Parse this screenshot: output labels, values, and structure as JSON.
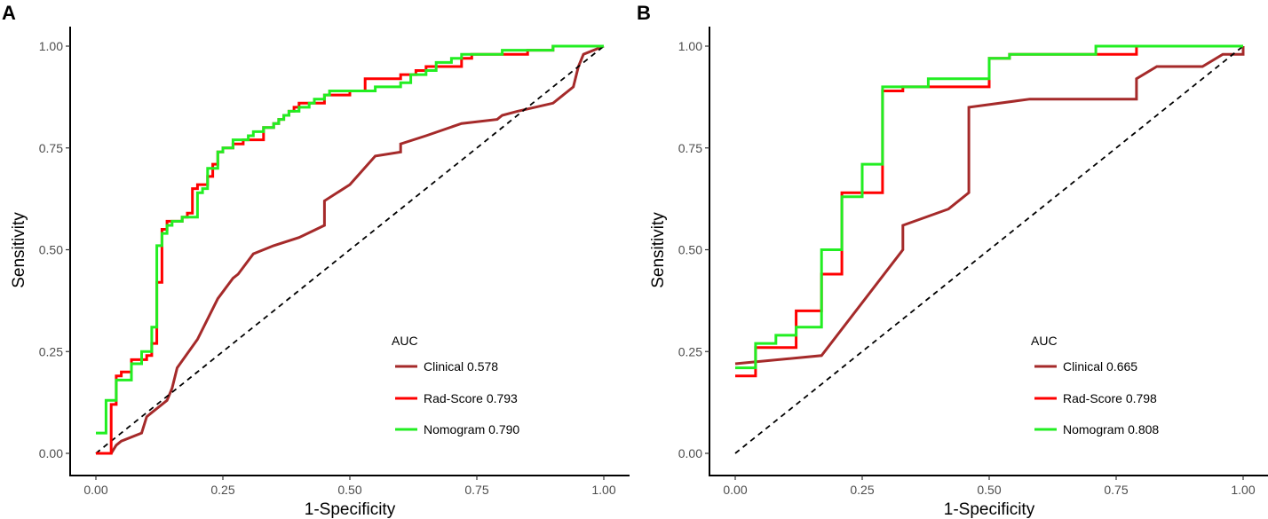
{
  "chart_data": [
    {
      "type": "line",
      "panel_label": "A",
      "xlabel": "1-Specificity",
      "ylabel": "Sensitivity",
      "xlim": [
        0,
        1
      ],
      "ylim": [
        0,
        1
      ],
      "xticks": [
        "0.00",
        "0.25",
        "0.50",
        "0.75",
        "1.00"
      ],
      "yticks": [
        "0.00",
        "0.25",
        "0.50",
        "0.75",
        "1.00"
      ],
      "grid": false,
      "legend_position": "bottom-right",
      "legend_title": "AUC",
      "reference_line": {
        "style": "dashed",
        "color": "#000000",
        "from": [
          0,
          0
        ],
        "to": [
          1,
          1
        ]
      },
      "series": [
        {
          "name": "Clinical 0.578",
          "label": "Clinical",
          "auc": "0.578",
          "color": "#A52A2A",
          "step": false,
          "x": [
            0,
            0.03,
            0.04,
            0.05,
            0.09,
            0.1,
            0.11,
            0.14,
            0.15,
            0.16,
            0.2,
            0.24,
            0.27,
            0.28,
            0.31,
            0.35,
            0.4,
            0.45,
            0.45,
            0.5,
            0.55,
            0.6,
            0.6,
            0.65,
            0.72,
            0.79,
            0.8,
            0.83,
            0.9,
            0.94,
            0.95,
            0.96,
            1.0
          ],
          "y": [
            0.0,
            0.0,
            0.02,
            0.03,
            0.05,
            0.09,
            0.1,
            0.13,
            0.16,
            0.21,
            0.28,
            0.38,
            0.43,
            0.44,
            0.49,
            0.51,
            0.53,
            0.56,
            0.62,
            0.66,
            0.73,
            0.74,
            0.76,
            0.78,
            0.81,
            0.82,
            0.83,
            0.84,
            0.86,
            0.9,
            0.95,
            0.98,
            1.0
          ]
        },
        {
          "name": "Rad-Score 0.793",
          "label": "Rad-Score",
          "auc": "0.793",
          "color": "#FF0000",
          "step": true,
          "x": [
            0,
            0.02,
            0.03,
            0.04,
            0.05,
            0.06,
            0.07,
            0.1,
            0.11,
            0.12,
            0.13,
            0.14,
            0.15,
            0.17,
            0.18,
            0.19,
            0.2,
            0.22,
            0.23,
            0.24,
            0.25,
            0.27,
            0.29,
            0.31,
            0.33,
            0.35,
            0.36,
            0.37,
            0.38,
            0.39,
            0.4,
            0.45,
            0.47,
            0.5,
            0.53,
            0.6,
            0.63,
            0.65,
            0.68,
            0.72,
            0.74,
            0.75,
            0.85,
            0.9,
            1.0
          ],
          "y": [
            0.0,
            0.0,
            0.12,
            0.19,
            0.2,
            0.2,
            0.23,
            0.24,
            0.27,
            0.42,
            0.55,
            0.57,
            0.57,
            0.58,
            0.59,
            0.65,
            0.66,
            0.68,
            0.71,
            0.74,
            0.75,
            0.76,
            0.77,
            0.77,
            0.8,
            0.81,
            0.82,
            0.83,
            0.84,
            0.85,
            0.86,
            0.88,
            0.88,
            0.89,
            0.92,
            0.93,
            0.94,
            0.95,
            0.95,
            0.97,
            0.98,
            0.98,
            0.99,
            1.0,
            1.0
          ]
        },
        {
          "name": "Nomogram 0.790",
          "label": "Nomogram",
          "auc": "0.790",
          "color": "#22EE22",
          "step": true,
          "x": [
            0,
            0.01,
            0.02,
            0.03,
            0.04,
            0.06,
            0.07,
            0.09,
            0.11,
            0.12,
            0.13,
            0.14,
            0.15,
            0.17,
            0.2,
            0.21,
            0.22,
            0.24,
            0.25,
            0.27,
            0.28,
            0.3,
            0.31,
            0.33,
            0.35,
            0.36,
            0.37,
            0.38,
            0.4,
            0.42,
            0.43,
            0.45,
            0.46,
            0.5,
            0.55,
            0.57,
            0.6,
            0.62,
            0.65,
            0.67,
            0.7,
            0.72,
            0.75,
            0.8,
            0.85,
            0.9,
            1.0
          ],
          "y": [
            0.05,
            0.05,
            0.13,
            0.13,
            0.18,
            0.18,
            0.22,
            0.25,
            0.31,
            0.51,
            0.54,
            0.56,
            0.57,
            0.58,
            0.64,
            0.65,
            0.7,
            0.74,
            0.75,
            0.77,
            0.77,
            0.78,
            0.79,
            0.8,
            0.81,
            0.82,
            0.83,
            0.84,
            0.85,
            0.86,
            0.87,
            0.88,
            0.89,
            0.89,
            0.9,
            0.9,
            0.91,
            0.93,
            0.94,
            0.96,
            0.97,
            0.98,
            0.98,
            0.99,
            0.99,
            1.0,
            1.0
          ]
        }
      ]
    },
    {
      "type": "line",
      "panel_label": "B",
      "xlabel": "1-Specificity",
      "ylabel": "Sensitivity",
      "xlim": [
        0,
        1
      ],
      "ylim": [
        0,
        1
      ],
      "xticks": [
        "0.00",
        "0.25",
        "0.50",
        "0.75",
        "1.00"
      ],
      "yticks": [
        "0.00",
        "0.25",
        "0.50",
        "0.75",
        "1.00"
      ],
      "grid": false,
      "legend_position": "bottom-right",
      "legend_title": "AUC",
      "reference_line": {
        "style": "dashed",
        "color": "#000000",
        "from": [
          0,
          0
        ],
        "to": [
          1,
          1
        ]
      },
      "series": [
        {
          "name": "Clinical 0.665",
          "label": "Clinical",
          "auc": "0.665",
          "color": "#A52A2A",
          "step": false,
          "x": [
            0,
            0.17,
            0.33,
            0.33,
            0.42,
            0.46,
            0.46,
            0.58,
            0.79,
            0.79,
            0.83,
            0.92,
            0.96,
            1.0,
            1.0
          ],
          "y": [
            0.22,
            0.24,
            0.5,
            0.56,
            0.6,
            0.64,
            0.85,
            0.87,
            0.87,
            0.92,
            0.95,
            0.95,
            0.98,
            0.98,
            1.0
          ]
        },
        {
          "name": "Rad-Score 0.798",
          "label": "Rad-Score",
          "auc": "0.798",
          "color": "#FF0000",
          "step": true,
          "x": [
            0,
            0.04,
            0.08,
            0.12,
            0.17,
            0.21,
            0.25,
            0.29,
            0.33,
            0.5,
            0.54,
            0.62,
            0.71,
            0.79,
            1.0
          ],
          "y": [
            0.19,
            0.26,
            0.26,
            0.35,
            0.44,
            0.64,
            0.64,
            0.89,
            0.9,
            0.97,
            0.98,
            0.98,
            0.98,
            1.0,
            1.0
          ]
        },
        {
          "name": "Nomogram 0.808",
          "label": "Nomogram",
          "auc": "0.808",
          "color": "#22EE22",
          "step": true,
          "x": [
            0,
            0.04,
            0.08,
            0.12,
            0.17,
            0.21,
            0.25,
            0.29,
            0.38,
            0.5,
            0.54,
            0.71,
            1.0
          ],
          "y": [
            0.21,
            0.27,
            0.29,
            0.31,
            0.5,
            0.63,
            0.71,
            0.9,
            0.92,
            0.97,
            0.98,
            1.0,
            1.0
          ]
        }
      ]
    }
  ]
}
